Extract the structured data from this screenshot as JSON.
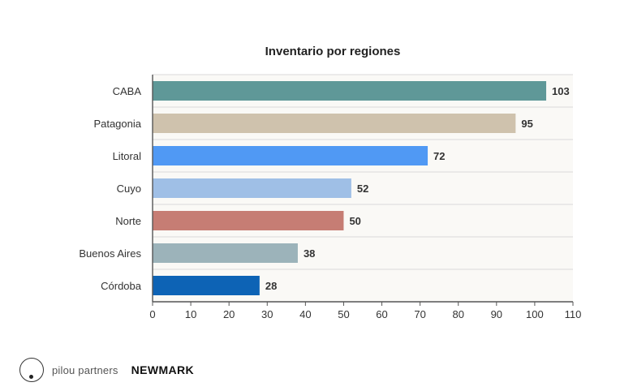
{
  "chart_data": {
    "type": "bar",
    "orientation": "horizontal",
    "title": "Inventario por regiones",
    "categories": [
      "CABA",
      "Patagonia",
      "Litoral",
      "Cuyo",
      "Norte",
      "Buenos Aires",
      "Córdoba"
    ],
    "values": [
      103,
      95,
      72,
      52,
      50,
      38,
      28
    ],
    "colors": [
      "#5f9898",
      "#cfc2ad",
      "#5099f4",
      "#9fbfe6",
      "#c67d74",
      "#9cb3ba",
      "#0d63b5"
    ],
    "xlabel": "",
    "ylabel": "",
    "xlim": [
      0,
      110
    ],
    "xticks": [
      0,
      10,
      20,
      30,
      40,
      50,
      60,
      70,
      80,
      90,
      100,
      110
    ],
    "grid": "horizontal-separators",
    "data_labels": true
  },
  "footer": {
    "brand_primary": "pilou partners",
    "brand_secondary": "NEWMARK"
  }
}
